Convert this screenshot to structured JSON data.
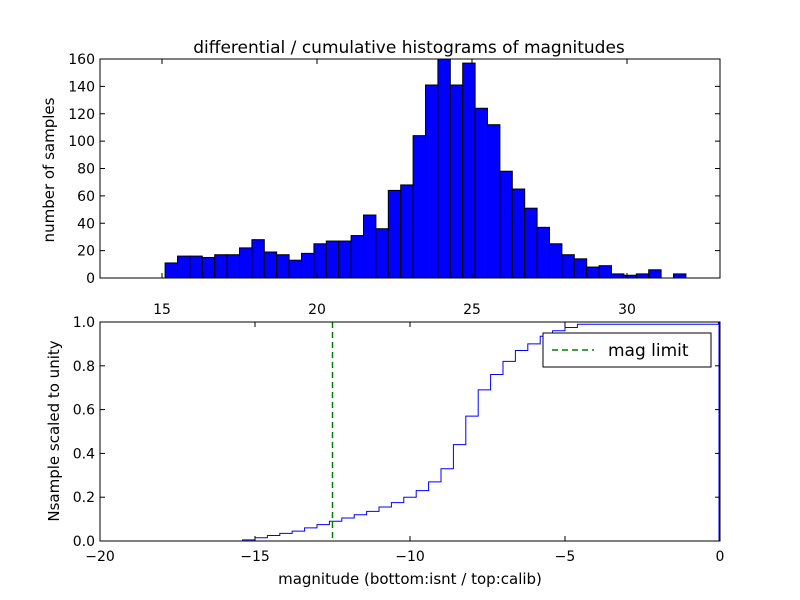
{
  "chart_data": [
    {
      "type": "bar",
      "title": "differential / cumulative histograms of magnitudes",
      "xlabel": "",
      "ylabel": "number of samples",
      "xlim": [
        13,
        33
      ],
      "ylim": [
        0,
        160
      ],
      "xticks": [
        15,
        20,
        25,
        30
      ],
      "yticks": [
        0,
        20,
        40,
        60,
        80,
        100,
        120,
        140,
        160
      ],
      "bin_edges": [
        15.1,
        15.5,
        15.9,
        16.3,
        16.7,
        17.1,
        17.5,
        17.9,
        18.3,
        18.7,
        19.1,
        19.5,
        19.9,
        20.3,
        20.7,
        21.1,
        21.5,
        21.9,
        22.3,
        22.7,
        23.1,
        23.5,
        23.9,
        24.3,
        24.7,
        25.1,
        25.5,
        25.9,
        26.3,
        26.7,
        27.1,
        27.5,
        27.9,
        28.3,
        28.7,
        29.1,
        29.5,
        29.9,
        30.3,
        30.7,
        31.1,
        31.5,
        31.9,
        32.3,
        32.7
      ],
      "values": [
        11,
        16,
        16,
        15,
        17,
        17,
        22,
        28,
        19,
        17,
        13,
        18,
        25,
        27,
        27,
        31,
        46,
        36,
        64,
        68,
        104,
        141,
        160,
        141,
        157,
        124,
        112,
        78,
        65,
        51,
        37,
        25,
        17,
        14,
        8,
        9,
        3,
        2,
        3,
        6,
        0,
        3,
        0,
        0
      ],
      "color": "#0000ff",
      "edge_color": "#000000"
    },
    {
      "type": "line",
      "xlabel": "magnitude (bottom:isnt / top:calib)",
      "ylabel": "Nsample scaled to unity",
      "xlim": [
        -20,
        0
      ],
      "ylim": [
        0.0,
        1.0
      ],
      "xticks": [
        -20,
        -15,
        -10,
        -5,
        0
      ],
      "xtick_labels": [
        "−20",
        "−15",
        "−10",
        "−5",
        "0"
      ],
      "yticks": [
        0.0,
        0.2,
        0.4,
        0.6,
        0.8,
        1.0
      ],
      "ytick_labels": [
        "0.0",
        "0.2",
        "0.4",
        "0.6",
        "0.8",
        "1.0"
      ],
      "step_x": [
        -20,
        -15.4,
        -15.0,
        -14.6,
        -14.2,
        -13.8,
        -13.4,
        -13.0,
        -12.6,
        -12.2,
        -11.8,
        -11.4,
        -11.0,
        -10.6,
        -10.2,
        -9.8,
        -9.4,
        -9.0,
        -8.6,
        -8.2,
        -7.8,
        -7.4,
        -7.0,
        -6.6,
        -6.2,
        -5.8,
        -5.4,
        -5.0,
        -4.6,
        -0.05
      ],
      "step_y": [
        0.0,
        0.005,
        0.015,
        0.025,
        0.035,
        0.045,
        0.06,
        0.075,
        0.09,
        0.105,
        0.12,
        0.135,
        0.155,
        0.175,
        0.2,
        0.23,
        0.27,
        0.33,
        0.44,
        0.57,
        0.69,
        0.76,
        0.82,
        0.87,
        0.9,
        0.935,
        0.96,
        0.975,
        0.99,
        1.0
      ],
      "series_color": "#0000ff",
      "mag_limit_x": -12.5,
      "mag_limit_color": "#008000",
      "legend": [
        {
          "label": "mag limit",
          "style": "dashed",
          "color": "#008000"
        }
      ],
      "legend_loc": "upper right"
    }
  ]
}
